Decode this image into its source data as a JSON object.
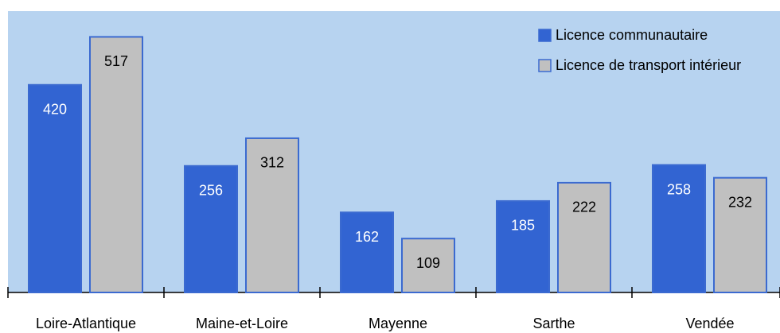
{
  "chart_data": {
    "type": "bar",
    "categories": [
      "Loire-Atlantique",
      "Maine-et-Loire",
      "Mayenne",
      "Sarthe",
      "Vendée"
    ],
    "series": [
      {
        "name": "Licence communautaire",
        "color": "#3264d2",
        "values": [
          420,
          256,
          162,
          185,
          258
        ]
      },
      {
        "name": "Licence de transport intérieur",
        "color": "#c0c0c0",
        "values": [
          517,
          312,
          109,
          222,
          232
        ]
      }
    ],
    "legend": "upper right"
  }
}
